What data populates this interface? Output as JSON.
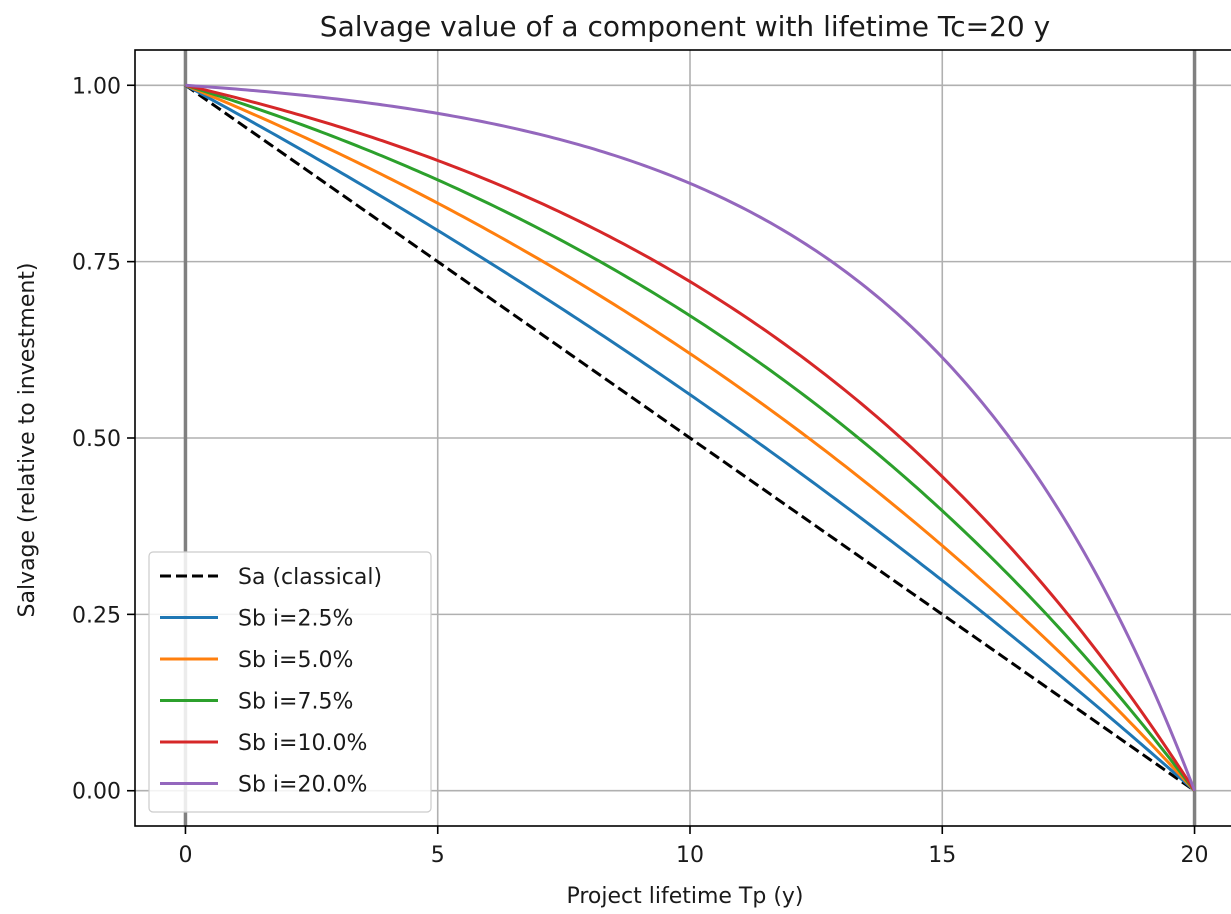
{
  "chart_data": {
    "type": "line",
    "title": "Salvage value of a component with lifetime Tc=20 y",
    "xlabel": "Project lifetime Tp (y)",
    "ylabel": "Salvage (relative to investment)",
    "xlim": [
      -1,
      21
    ],
    "ylim": [
      -0.05,
      1.05
    ],
    "xticks": [
      0,
      5,
      10,
      15,
      20
    ],
    "xtick_labels": [
      "0",
      "5",
      "10",
      "15",
      "20"
    ],
    "yticks": [
      0,
      0.25,
      0.5,
      0.75,
      1.0
    ],
    "ytick_labels": [
      "0.00",
      "0.25",
      "0.50",
      "0.75",
      "1.00"
    ],
    "vlines": [
      0,
      20
    ],
    "grid": true,
    "legend_position": "lower-left",
    "Tc": 20,
    "series": [
      {
        "name": "Sa (classical)",
        "rate": 0,
        "color": "#000000",
        "dash": true
      },
      {
        "name": "Sb i=2.5%",
        "rate": 0.025,
        "color": "#1f77b4",
        "dash": false
      },
      {
        "name": "Sb i=5.0%",
        "rate": 0.05,
        "color": "#ff7f0e",
        "dash": false
      },
      {
        "name": "Sb i=7.5%",
        "rate": 0.075,
        "color": "#2ca02c",
        "dash": false
      },
      {
        "name": "Sb i=10.0%",
        "rate": 0.1,
        "color": "#d62728",
        "dash": false
      },
      {
        "name": "Sb i=20.0%",
        "rate": 0.2,
        "color": "#9467bd",
        "dash": false
      }
    ]
  }
}
